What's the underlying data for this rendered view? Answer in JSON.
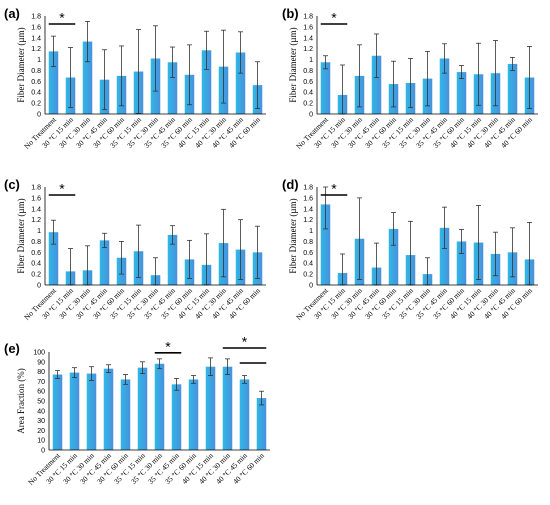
{
  "colors": {
    "bar_light": "#2fb8e6",
    "bar_dark": "#4a90dc",
    "error": "#333333",
    "axis": "#000000"
  },
  "categories": [
    "No Treatment",
    "30 °C 15 min",
    "30 °C 30 min",
    "30 °C 45 min",
    "30 °C 60 min",
    "35 °C 15 min",
    "35 °C 30 min",
    "35 °C 45 min",
    "35 °C 60 min",
    "40 °C 15 min",
    "40 °C 30 min",
    "40 °C 45 min",
    "40 °C 60 min"
  ],
  "chart_data": [
    {
      "type": "bar",
      "panel": "(a)",
      "ylabel": "Fiber Diameter (µm)",
      "ylim": [
        0,
        1.8
      ],
      "yticks": [
        "0",
        "0.2",
        "0.4",
        "0.6",
        "0.8",
        "1",
        "1.2",
        "1.4",
        "1.6",
        "1.8"
      ],
      "ytick_values": [
        0,
        0.2,
        0.4,
        0.6,
        0.8,
        1,
        1.2,
        1.4,
        1.6,
        1.8
      ],
      "values": [
        1.15,
        0.67,
        1.33,
        0.63,
        0.7,
        0.78,
        1.02,
        0.95,
        0.72,
        1.17,
        0.87,
        1.13,
        0.53
      ],
      "errors": [
        0.28,
        0.55,
        0.37,
        0.55,
        0.55,
        0.77,
        0.6,
        0.28,
        0.55,
        0.35,
        0.67,
        0.38,
        0.43
      ],
      "significance": [
        {
          "from": 0,
          "to": 1,
          "label": "*"
        }
      ]
    },
    {
      "type": "bar",
      "panel": "(b)",
      "ylabel": "Fiber Diameter (µm)",
      "ylim": [
        0,
        1.8
      ],
      "yticks": [
        "0",
        "0.2",
        "0.4",
        "0.6",
        "0.8",
        "1",
        "1.2",
        "1.4",
        "1.6",
        "1.8"
      ],
      "ytick_values": [
        0,
        0.2,
        0.4,
        0.6,
        0.8,
        1,
        1.2,
        1.4,
        1.6,
        1.8
      ],
      "values": [
        0.95,
        0.35,
        0.7,
        1.07,
        0.55,
        0.57,
        0.65,
        1.02,
        0.77,
        0.73,
        0.75,
        0.92,
        0.67
      ],
      "errors": [
        0.12,
        0.55,
        0.57,
        0.4,
        0.42,
        0.45,
        0.5,
        0.27,
        0.12,
        0.57,
        0.6,
        0.12,
        0.57
      ],
      "significance": [
        {
          "from": 0,
          "to": 1,
          "label": "*"
        }
      ]
    },
    {
      "type": "bar",
      "panel": "(c)",
      "ylabel": "Fiber Diameter (µm)",
      "ylim": [
        0,
        1.8
      ],
      "yticks": [
        "0",
        "0.2",
        "0.4",
        "0.6",
        "0.8",
        "1",
        "1.2",
        "1.4",
        "1.6",
        "1.8"
      ],
      "ytick_values": [
        0,
        0.2,
        0.4,
        0.6,
        0.8,
        1,
        1.2,
        1.4,
        1.6,
        1.8
      ],
      "values": [
        0.97,
        0.25,
        0.27,
        0.82,
        0.5,
        0.62,
        0.18,
        0.92,
        0.47,
        0.37,
        0.77,
        0.65,
        0.6
      ],
      "errors": [
        0.22,
        0.42,
        0.45,
        0.13,
        0.3,
        0.48,
        0.32,
        0.17,
        0.35,
        0.57,
        0.62,
        0.55,
        0.48
      ],
      "significance": [
        {
          "from": 0,
          "to": 1,
          "label": "*"
        }
      ]
    },
    {
      "type": "bar",
      "panel": "(d)",
      "ylabel": "Fiber Diameter (µm)",
      "ylim": [
        0,
        1.8
      ],
      "yticks": [
        "0",
        "0.2",
        "0.4",
        "0.6",
        "0.8",
        "1",
        "1.2",
        "1.4",
        "1.6",
        "1.8"
      ],
      "ytick_values": [
        0,
        0.2,
        0.4,
        0.6,
        0.8,
        1,
        1.2,
        1.4,
        1.6,
        1.8
      ],
      "values": [
        1.48,
        0.22,
        0.85,
        0.32,
        1.03,
        0.55,
        0.2,
        1.05,
        0.8,
        0.78,
        0.57,
        0.6,
        0.47
      ],
      "errors": [
        0.45,
        0.35,
        0.75,
        0.45,
        0.3,
        0.62,
        0.3,
        0.38,
        0.22,
        0.68,
        0.4,
        0.45,
        0.68
      ],
      "significance": [
        {
          "from": 0,
          "to": 1,
          "label": "*"
        }
      ]
    },
    {
      "type": "bar",
      "panel": "(e)",
      "ylabel": "Area Fraction (%)",
      "ylim": [
        0,
        100
      ],
      "yticks": [
        "0",
        "10",
        "20",
        "30",
        "40",
        "50",
        "60",
        "70",
        "80",
        "90",
        "100"
      ],
      "ytick_values": [
        0,
        10,
        20,
        30,
        40,
        50,
        60,
        70,
        80,
        90,
        100
      ],
      "values": [
        77,
        79,
        78,
        83,
        72,
        84,
        88,
        67,
        72,
        85,
        85,
        72,
        53
      ],
      "errors": [
        4,
        5,
        7,
        4,
        5,
        6,
        5,
        6,
        4,
        9,
        8,
        4,
        7
      ],
      "significance": [
        {
          "from": 6,
          "to": 7,
          "label": "*"
        },
        {
          "from": 10,
          "to": 12,
          "label": "*"
        },
        {
          "from": 11,
          "to": 12,
          "label": ""
        }
      ]
    }
  ]
}
